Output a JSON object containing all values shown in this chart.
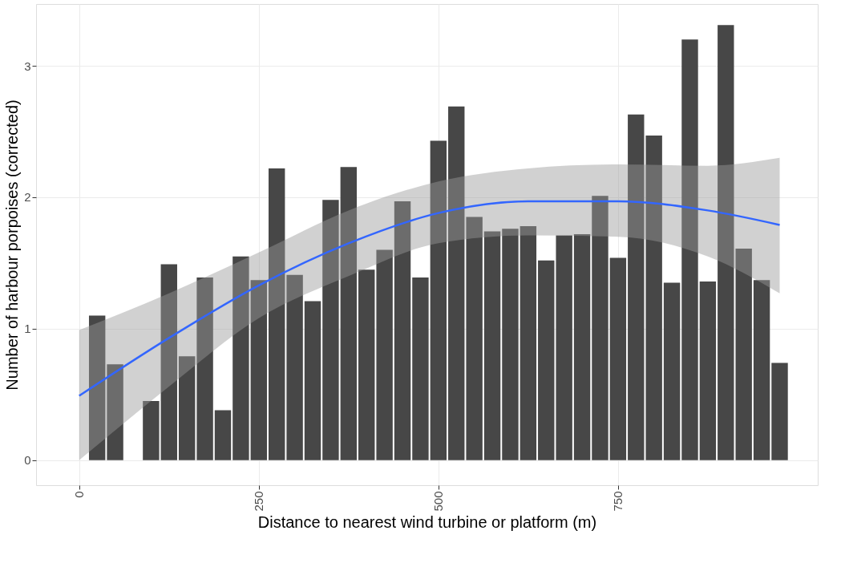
{
  "chart_data": {
    "type": "bar",
    "xlabel": "Distance to nearest wind turbine or platform (m)",
    "ylabel": "Number of harbour porpoises (corrected)",
    "x": [
      25,
      50,
      75,
      100,
      125,
      150,
      175,
      200,
      225,
      250,
      275,
      300,
      325,
      350,
      375,
      400,
      425,
      450,
      475,
      500,
      525,
      550,
      575,
      600,
      625,
      650,
      675,
      700,
      725,
      750,
      775,
      800,
      825,
      850,
      875,
      900,
      925,
      950,
      975
    ],
    "series": [
      {
        "color": "#474747",
        "values": [
          1.1,
          0.73,
          null,
          0.45,
          1.49,
          0.79,
          1.39,
          0.38,
          1.55,
          1.37,
          2.22,
          1.41,
          1.21,
          1.98,
          2.23,
          1.45,
          1.6,
          1.97,
          1.39,
          2.43,
          2.69,
          1.85,
          1.74,
          1.76,
          1.78,
          1.52,
          1.71,
          1.72,
          2.01,
          1.54,
          2.63,
          2.47,
          1.35,
          3.2,
          1.36,
          3.31,
          1.61,
          1.37,
          0.74
        ]
      },
      {
        "type": "line",
        "color": "#3366ff",
        "x": [
          0,
          125,
          250,
          375,
          500,
          625,
          750,
          875,
          975
        ],
        "values": [
          0.49,
          0.93,
          1.33,
          1.65,
          1.88,
          1.97,
          1.97,
          1.9,
          1.79
        ],
        "lower": [
          0.0,
          0.56,
          1.08,
          1.4,
          1.65,
          1.71,
          1.7,
          1.55,
          1.27
        ],
        "upper": [
          0.99,
          1.27,
          1.58,
          1.9,
          2.12,
          2.22,
          2.25,
          2.24,
          2.3
        ]
      }
    ],
    "xlim": [
      -60,
      1028
    ],
    "xticks": [
      0,
      250,
      500,
      750
    ],
    "ylim": [
      -0.19,
      3.47
    ],
    "yticks": [
      0,
      1,
      2,
      3
    ],
    "grid": true
  }
}
